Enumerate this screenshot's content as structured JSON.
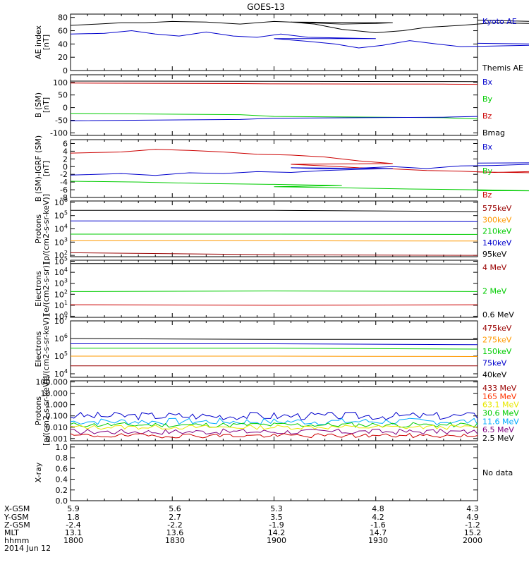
{
  "title": "GOES-13",
  "time": {
    "ticks": [
      "1800",
      "1830",
      "1900",
      "1930",
      "2000"
    ],
    "range": [
      1800,
      2000
    ]
  },
  "bottom_table": {
    "row_labels": [
      "X-GSM",
      "Y-GSM",
      "Z-GSM",
      "MLT",
      "hhmm",
      "2014 Jun 12"
    ],
    "columns": [
      [
        "5.9",
        "1.8",
        "-2.4",
        "13.1",
        "1800"
      ],
      [
        "5.6",
        "2.7",
        "-2.2",
        "13.6",
        "1830"
      ],
      [
        "5.3",
        "3.5",
        "-1.9",
        "14.2",
        "1900"
      ],
      [
        "4.8",
        "4.2",
        "-1.6",
        "14.7",
        "1930"
      ],
      [
        "4.3",
        "4.9",
        "-1.2",
        "15.2",
        "2000"
      ]
    ]
  },
  "colors": {
    "black": "#000000",
    "blue": "#0000cc",
    "green": "#00cc00",
    "red": "#cc0000",
    "darkred": "#990000",
    "orange": "#ff9900",
    "yellow": "#e8e800",
    "cyan": "#00aaff",
    "purple": "#800080"
  },
  "chart_data": [
    {
      "type": "line",
      "ylabel": "AE index\n[nT]",
      "yticks": [
        "0",
        "20",
        "40",
        "60",
        "80"
      ],
      "ylim": [
        0,
        85
      ],
      "scale": "linear",
      "legend": [
        {
          "name": "Kyoto AE",
          "color": "#0000cc"
        },
        {
          "name": "Themis AE",
          "color": "#000000"
        }
      ],
      "series": [
        {
          "color": "#000000",
          "points": [
            [
              1800,
              68
            ],
            [
              1808,
              70
            ],
            [
              1815,
              72
            ],
            [
              1822,
              72
            ],
            [
              1830,
              74
            ],
            [
              1840,
              73
            ],
            [
              1850,
              70
            ],
            [
              1860,
              74
            ],
            [
              1870,
              72
            ],
            [
              1880,
              70
            ],
            [
              1890,
              71
            ],
            [
              1895,
              72
            ],
            [
              1905,
              73
            ],
            [
              1912,
              70
            ],
            [
              1920,
              62
            ],
            [
              1930,
              57
            ],
            [
              1938,
              60
            ],
            [
              1945,
              65
            ],
            [
              1955,
              68
            ],
            [
              1965,
              72
            ],
            [
              1975,
              71
            ],
            [
              1985,
              70
            ],
            [
              1992,
              72
            ],
            [
              2000,
              76
            ]
          ]
        },
        {
          "color": "#0000cc",
          "points": [
            [
              1800,
              55
            ],
            [
              1810,
              56
            ],
            [
              1818,
              60
            ],
            [
              1825,
              55
            ],
            [
              1832,
              52
            ],
            [
              1840,
              58
            ],
            [
              1848,
              52
            ],
            [
              1855,
              50
            ],
            [
              1862,
              55
            ],
            [
              1870,
              50
            ],
            [
              1880,
              49
            ],
            [
              1890,
              48
            ],
            [
              1900,
              48
            ],
            [
              1910,
              44
            ],
            [
              1918,
              40
            ],
            [
              1925,
              34
            ],
            [
              1932,
              38
            ],
            [
              1940,
              45
            ],
            [
              1948,
              40
            ],
            [
              1955,
              36
            ],
            [
              1965,
              37
            ],
            [
              1975,
              38
            ],
            [
              1985,
              38
            ],
            [
              1995,
              39
            ],
            [
              2000,
              41
            ]
          ]
        }
      ]
    },
    {
      "type": "line",
      "ylabel": "B (SM)\n[nT]",
      "yticks": [
        "-100",
        "-50",
        "0",
        "50",
        "100"
      ],
      "ylim": [
        -110,
        130
      ],
      "scale": "linear",
      "legend": [
        {
          "name": "Bx",
          "color": "#0000cc"
        },
        {
          "name": "By",
          "color": "#00cc00"
        },
        {
          "name": "Bz",
          "color": "#cc0000"
        },
        {
          "name": "Bmag",
          "color": "#000000"
        }
      ],
      "series": [
        {
          "color": "#000000",
          "points": [
            [
              1800,
              105
            ],
            [
              1900,
              104
            ],
            [
              2000,
              103
            ]
          ]
        },
        {
          "color": "#cc0000",
          "points": [
            [
              1800,
              97
            ],
            [
              1850,
              95
            ],
            [
              1900,
              94
            ],
            [
              1950,
              93
            ],
            [
              2000,
              92
            ]
          ]
        },
        {
          "color": "#00cc00",
          "points": [
            [
              1800,
              -23
            ],
            [
              1850,
              -28
            ],
            [
              1900,
              -35
            ],
            [
              1950,
              -40
            ],
            [
              2000,
              -45
            ]
          ]
        },
        {
          "color": "#0000cc",
          "points": [
            [
              1800,
              -52
            ],
            [
              1850,
              -47
            ],
            [
              1900,
              -42
            ],
            [
              1950,
              -38
            ],
            [
              2000,
              -35
            ]
          ]
        }
      ]
    },
    {
      "type": "line",
      "ylabel": "B (SM)-IGRF (SM)\n[nT]",
      "yticks": [
        "-8",
        "-6",
        "-4",
        "-2",
        "0",
        "2",
        "4",
        "6"
      ],
      "ylim": [
        -8,
        7
      ],
      "scale": "linear",
      "legend": [
        {
          "name": "Bx",
          "color": "#0000cc"
        },
        {
          "name": "By",
          "color": "#00cc00"
        },
        {
          "name": "Bz",
          "color": "#cc0000"
        }
      ],
      "series": [
        {
          "color": "#cc0000",
          "points": [
            [
              1800,
              3.5
            ],
            [
              1815,
              3.8
            ],
            [
              1825,
              4.5
            ],
            [
              1835,
              4.2
            ],
            [
              1845,
              3.8
            ],
            [
              1855,
              3.2
            ],
            [
              1865,
              3.0
            ],
            [
              1875,
              2.5
            ],
            [
              1885,
              1.5
            ],
            [
              1895,
              0.8
            ],
            [
              1905,
              0.6
            ],
            [
              1915,
              0.2
            ],
            [
              1925,
              -0.3
            ],
            [
              1935,
              -0.6
            ],
            [
              1945,
              -1.0
            ],
            [
              1955,
              -1.2
            ],
            [
              1965,
              -1.5
            ],
            [
              1975,
              -1.3
            ],
            [
              1985,
              -1.6
            ],
            [
              1995,
              -1.8
            ],
            [
              2000,
              -1.4
            ]
          ]
        },
        {
          "color": "#0000cc",
          "points": [
            [
              1800,
              -2.2
            ],
            [
              1815,
              -1.8
            ],
            [
              1825,
              -2.3
            ],
            [
              1835,
              -1.6
            ],
            [
              1845,
              -1.8
            ],
            [
              1855,
              -1.3
            ],
            [
              1865,
              -1.5
            ],
            [
              1875,
              -1.0
            ],
            [
              1885,
              -0.7
            ],
            [
              1895,
              -0.5
            ],
            [
              1905,
              -0.3
            ],
            [
              1915,
              -0.6
            ],
            [
              1925,
              -0.4
            ],
            [
              1935,
              0.0
            ],
            [
              1945,
              -0.5
            ],
            [
              1955,
              0.2
            ],
            [
              1965,
              0.3
            ],
            [
              1975,
              0.6
            ],
            [
              1985,
              0.8
            ],
            [
              1995,
              1.1
            ],
            [
              2000,
              0.9
            ]
          ]
        },
        {
          "color": "#00cc00",
          "points": [
            [
              1800,
              -3.8
            ],
            [
              1820,
              -4.0
            ],
            [
              1840,
              -4.4
            ],
            [
              1860,
              -4.6
            ],
            [
              1880,
              -4.9
            ],
            [
              1900,
              -5.2
            ],
            [
              1920,
              -5.5
            ],
            [
              1940,
              -5.8
            ],
            [
              1960,
              -6.0
            ],
            [
              1980,
              -6.3
            ],
            [
              2000,
              -6.2
            ]
          ]
        }
      ]
    },
    {
      "type": "line",
      "ylabel": "Protons\n[p/(cm2-s-sr-keV)]",
      "yticks": [
        "10^2",
        "10^3",
        "10^4",
        "10^5",
        "10^6"
      ],
      "ylim": [
        1.9,
        6.1
      ],
      "scale": "log10",
      "legend": [
        {
          "name": "575keV",
          "color": "#990000"
        },
        {
          "name": "300keV",
          "color": "#ff9900"
        },
        {
          "name": "210keV",
          "color": "#00cc00"
        },
        {
          "name": "140keV",
          "color": "#0000cc"
        },
        {
          "name": "95keV",
          "color": "#000000"
        }
      ],
      "series": [
        {
          "color": "#000000",
          "points": [
            [
              1800,
              5.4
            ],
            [
              1900,
              5.4
            ],
            [
              1930,
              5.35
            ],
            [
              2000,
              5.3
            ]
          ]
        },
        {
          "color": "#0000cc",
          "points": [
            [
              1800,
              4.6
            ],
            [
              1900,
              4.58
            ],
            [
              2000,
              4.55
            ]
          ]
        },
        {
          "color": "#00cc00",
          "points": [
            [
              1800,
              3.6
            ],
            [
              1900,
              3.6
            ],
            [
              2000,
              3.58
            ]
          ]
        },
        {
          "color": "#ff9900",
          "points": [
            [
              1800,
              3.1
            ],
            [
              1900,
              3.1
            ],
            [
              2000,
              3.08
            ]
          ]
        },
        {
          "color": "#990000",
          "points": [
            [
              1800,
              2.2
            ],
            [
              1900,
              2.05
            ],
            [
              2000,
              2.0
            ]
          ]
        }
      ]
    },
    {
      "type": "line",
      "ylabel": "Electrons\n[e/(cm2-s-sr)]",
      "yticks": [
        "10^0",
        "10^1",
        "10^2",
        "10^3",
        "10^4",
        "10^5"
      ],
      "ylim": [
        -0.1,
        5.1
      ],
      "scale": "log10",
      "legend": [
        {
          "name": "4 MeV",
          "color": "#990000"
        },
        {
          "name": "2 MeV",
          "color": "#00cc00"
        },
        {
          "name": "0.6 MeV",
          "color": "#000000"
        }
      ],
      "series": [
        {
          "color": "#000000",
          "points": [
            [
              1800,
              4.8
            ],
            [
              1900,
              4.8
            ],
            [
              2000,
              4.75
            ]
          ]
        },
        {
          "color": "#00cc00",
          "points": [
            [
              1800,
              2.25
            ],
            [
              1900,
              2.3
            ],
            [
              2000,
              2.25
            ]
          ]
        },
        {
          "color": "#cc0000",
          "points": [
            [
              1800,
              1.05
            ],
            [
              1900,
              1.0
            ],
            [
              2000,
              1.05
            ]
          ]
        }
      ]
    },
    {
      "type": "line",
      "ylabel": "Electrons\n[e/(cm2-s-sr-keV)]",
      "yticks": [
        "10^4",
        "10^5",
        "10^6",
        "10^7"
      ],
      "ylim": [
        3.8,
        7.0
      ],
      "scale": "log10",
      "legend": [
        {
          "name": "475keV",
          "color": "#990000"
        },
        {
          "name": "275keV",
          "color": "#ff9900"
        },
        {
          "name": "150keV",
          "color": "#00cc00"
        },
        {
          "name": "75keV",
          "color": "#0000cc"
        },
        {
          "name": "40keV",
          "color": "#000000"
        }
      ],
      "series": [
        {
          "color": "#000000",
          "points": [
            [
              1800,
              6.0
            ],
            [
              1900,
              5.95
            ],
            [
              2000,
              5.95
            ]
          ]
        },
        {
          "color": "#0000cc",
          "points": [
            [
              1800,
              5.7
            ],
            [
              1900,
              5.7
            ],
            [
              2000,
              5.65
            ]
          ]
        },
        {
          "color": "#00cc00",
          "points": [
            [
              1800,
              5.45
            ],
            [
              1900,
              5.45
            ],
            [
              2000,
              5.4
            ]
          ]
        },
        {
          "color": "#ff9900",
          "points": [
            [
              1800,
              5.0
            ],
            [
              1900,
              5.0
            ],
            [
              2000,
              4.98
            ]
          ]
        },
        {
          "color": "#990000",
          "points": [
            [
              1800,
              4.45
            ],
            [
              1900,
              4.45
            ],
            [
              2000,
              4.45
            ]
          ]
        }
      ]
    },
    {
      "type": "line",
      "ylabel": "Protons\n[p/(cm2-s-sr-keV)]",
      "yticks": [
        "0.001",
        "0.010",
        "0.100",
        "1.000",
        "10.000",
        "100.000"
      ],
      "ylim": [
        -3.2,
        2.1
      ],
      "scale": "log10",
      "legend": [
        {
          "name": "433 MeV",
          "color": "#990000"
        },
        {
          "name": "165 MeV",
          "color": "#ff3300"
        },
        {
          "name": "63.1 MeV",
          "color": "#e8e800"
        },
        {
          "name": "30.6 MeV",
          "color": "#00cc00"
        },
        {
          "name": "11.6 MeV",
          "color": "#00aaff"
        },
        {
          "name": "6.5 MeV",
          "color": "#800080"
        },
        {
          "name": "2.5 MeV",
          "color": "#000000"
        }
      ],
      "series": [
        {
          "color": "#000000",
          "points": [
            [
              1800,
              1.6
            ],
            [
              1850,
              1.58
            ],
            [
              1900,
              1.58
            ],
            [
              1950,
              1.55
            ],
            [
              2000,
              1.55
            ]
          ]
        },
        {
          "color": "#0000cc",
          "noisy": true,
          "base": -1.0,
          "amp": 0.35,
          "seed": 3
        },
        {
          "color": "#00aaff",
          "noisy": true,
          "base": -1.5,
          "amp": 0.3,
          "seed": 7
        },
        {
          "color": "#00cc00",
          "noisy": true,
          "base": -1.8,
          "amp": 0.22,
          "seed": 11
        },
        {
          "color": "#e8e800",
          "noisy": true,
          "base": -2.0,
          "amp": 0.2,
          "seed": 13
        },
        {
          "color": "#800080",
          "noisy": true,
          "base": -2.4,
          "amp": 0.25,
          "seed": 17
        },
        {
          "color": "#cc0000",
          "noisy": true,
          "base": -2.75,
          "amp": 0.2,
          "seed": 19
        }
      ]
    },
    {
      "type": "line",
      "ylabel": "X-ray",
      "yticks": [
        "0.0",
        "0.2",
        "0.4",
        "0.6",
        "0.8",
        "1.0"
      ],
      "ylim": [
        0,
        1.05
      ],
      "scale": "linear",
      "legend": [
        {
          "name": "No data",
          "color": "#000000"
        }
      ],
      "series": []
    }
  ]
}
